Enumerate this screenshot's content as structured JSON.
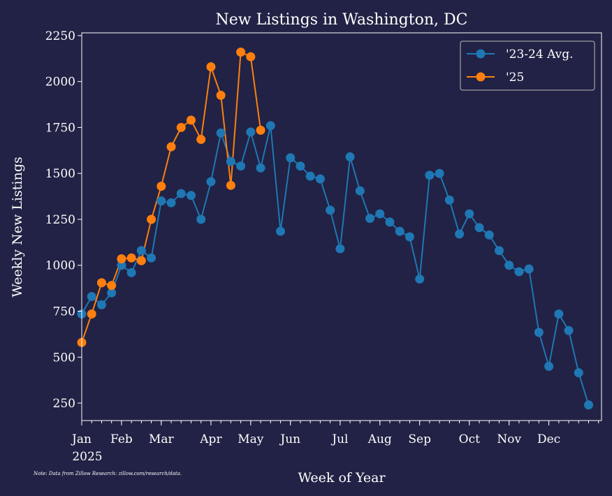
{
  "chart_data": {
    "type": "line",
    "title": "New Listings in Washington, DC",
    "xlabel": "Week of Year",
    "ylabel": "Weekly New Listings",
    "note": "Note: Data from Zillow Research: zillow.com/research/data.",
    "x_start_label": "2025",
    "xlim": [
      0,
      52.3
    ],
    "ylim": [
      155,
      2265
    ],
    "y_ticks": [
      250,
      500,
      750,
      1000,
      1250,
      1500,
      1750,
      2000,
      2250
    ],
    "x_month_ticks": [
      {
        "label": "Jan",
        "week": 0
      },
      {
        "label": "Feb",
        "week": 4
      },
      {
        "label": "Mar",
        "week": 8
      },
      {
        "label": "Apr",
        "week": 13
      },
      {
        "label": "May",
        "week": 17
      },
      {
        "label": "Jun",
        "week": 21
      },
      {
        "label": "Jul",
        "week": 26
      },
      {
        "label": "Aug",
        "week": 30
      },
      {
        "label": "Sep",
        "week": 34
      },
      {
        "label": "Oct",
        "week": 39
      },
      {
        "label": "Nov",
        "week": 43
      },
      {
        "label": "Dec",
        "week": 47
      }
    ],
    "grid": false,
    "legend_position": "top-right",
    "series": [
      {
        "name": "'23-24 Avg.",
        "color": "#1f77b4",
        "values": [
          735,
          830,
          785,
          850,
          1000,
          960,
          1080,
          1040,
          1350,
          1340,
          1390,
          1380,
          1250,
          1455,
          1720,
          1565,
          1540,
          1725,
          1530,
          1760,
          1185,
          1585,
          1540,
          1485,
          1470,
          1300,
          1090,
          1590,
          1405,
          1255,
          1280,
          1235,
          1185,
          1155,
          925,
          1490,
          1500,
          1355,
          1170,
          1280,
          1205,
          1165,
          1080,
          1000,
          965,
          980,
          635,
          450,
          735,
          645,
          415,
          240
        ]
      },
      {
        "name": "'25",
        "color": "#ff7f0e",
        "values": [
          580,
          735,
          905,
          890,
          1035,
          1040,
          1025,
          1250,
          1430,
          1645,
          1750,
          1790,
          1685,
          2080,
          1925,
          1435,
          2160,
          2135,
          1735
        ]
      }
    ]
  }
}
